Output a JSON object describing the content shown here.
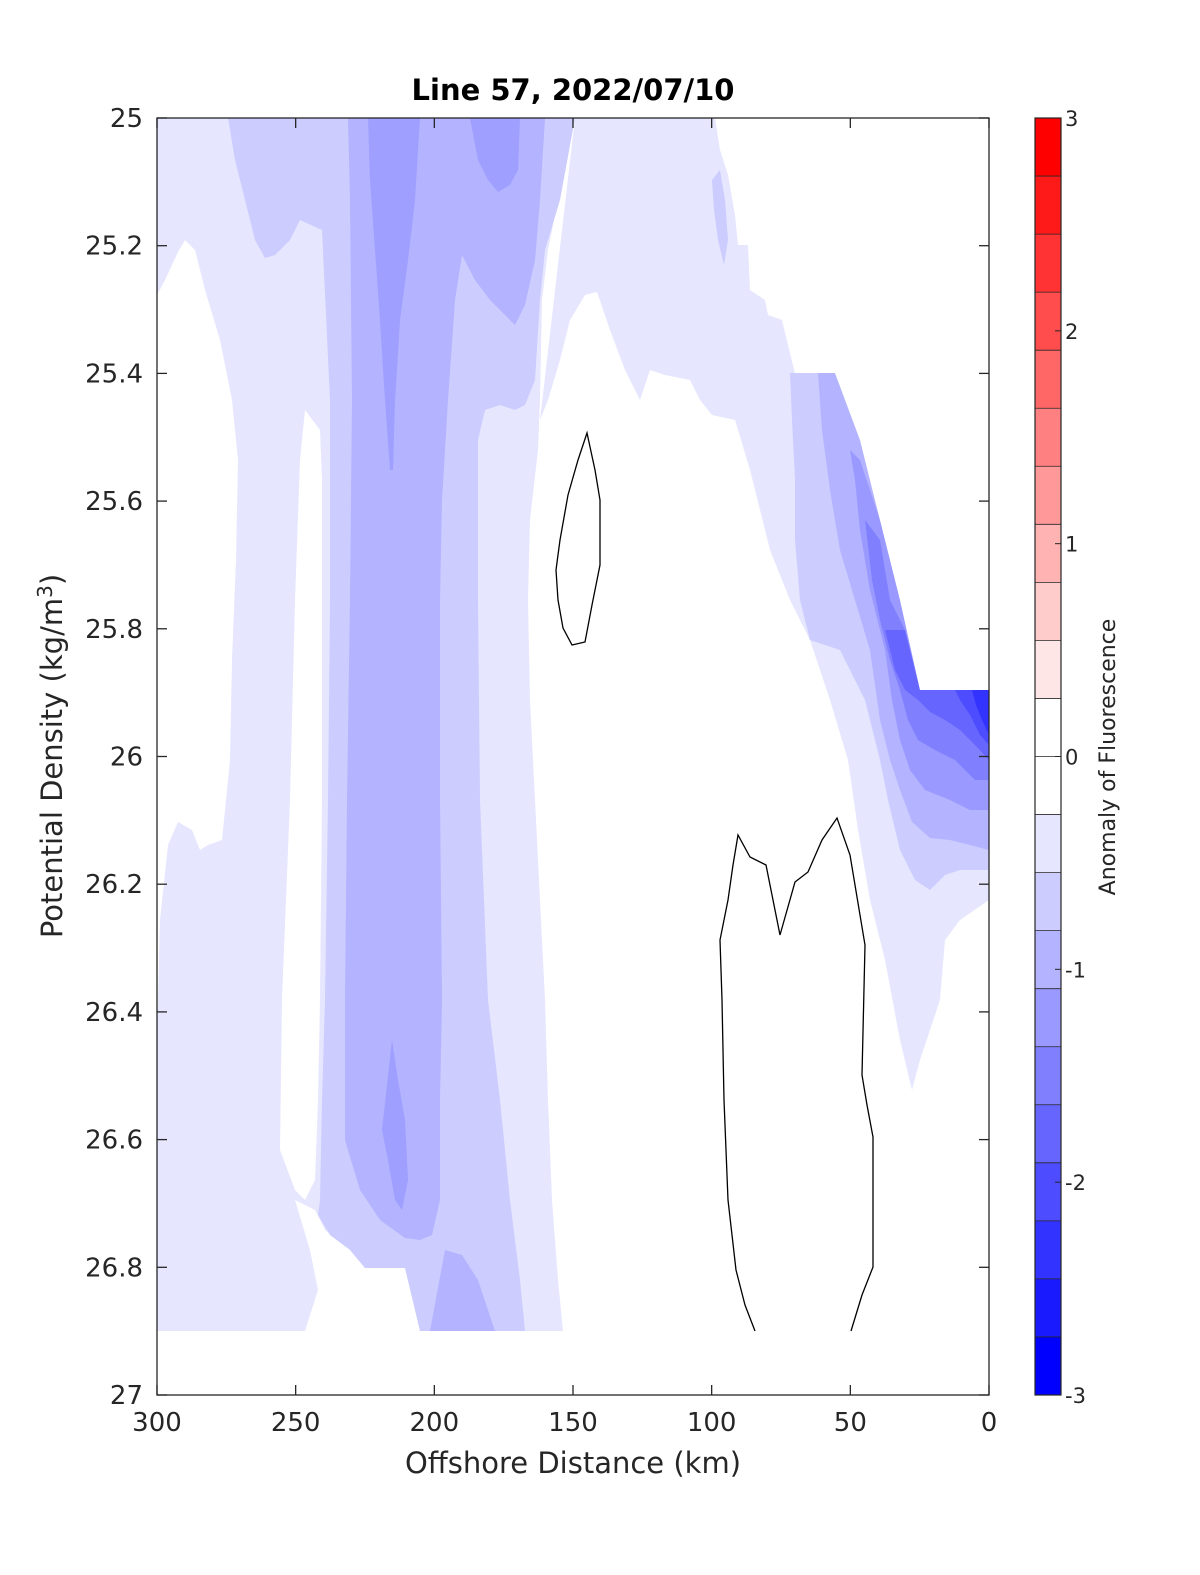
{
  "chart_data": {
    "type": "contour",
    "title": "Line 57, 2022/07/10",
    "xlabel": "Offshore Distance (km)",
    "ylabel": "Potential Density (kg/m³)",
    "xlim": [
      300,
      0
    ],
    "ylim": [
      25,
      27
    ],
    "x_reversed": true,
    "y_reversed": true,
    "xticks": [
      "300",
      "250",
      "200",
      "150",
      "100",
      "50",
      "0"
    ],
    "yticks": [
      "25",
      "25.2",
      "25.4",
      "25.6",
      "25.8",
      "26",
      "26.2",
      "26.4",
      "26.6",
      "26.8",
      "27"
    ],
    "colorbar": {
      "label": "Anomaly of Fluorescence",
      "range": [
        -3,
        3
      ],
      "ticks": [
        "3",
        "2",
        "1",
        "0",
        "-1",
        "-2",
        "-3"
      ],
      "colors_top_to_bottom": [
        "#ff0000",
        "#ff1a1a",
        "#ff3333",
        "#ff4d4d",
        "#ff6666",
        "#ff8080",
        "#ff9999",
        "#ffb3b3",
        "#ffcccc",
        "#ffe6e6",
        "#ffffff",
        "#ffffff",
        "#e6e6ff",
        "#ccccff",
        "#b3b3ff",
        "#9999ff",
        "#8080ff",
        "#6666ff",
        "#4d4dff",
        "#3333ff",
        "#1a1aff",
        "#0000ff"
      ]
    },
    "data_extent": {
      "density_max": 26.9
    },
    "features": [
      {
        "level": -0.25,
        "description": "broad weak negative anomaly covering offshore region 300-150 km"
      },
      {
        "level": -0.5,
        "description": "band around 240-160 km from 25 to 26.9"
      },
      {
        "level": -0.75,
        "description": "core band near 230-190 km"
      },
      {
        "level": -1.0,
        "description": "narrow core near 215 km, surface and 26.5-26.7"
      },
      {
        "level": -2.5,
        "description": "nearshore strong negative anomaly 25-0 km at 25.9-26.1"
      },
      {
        "level": 0.25,
        "description": "closed positive contours near 150 km (25.5-25.8) and 90-45 km (26.1-26.9)"
      }
    ]
  }
}
